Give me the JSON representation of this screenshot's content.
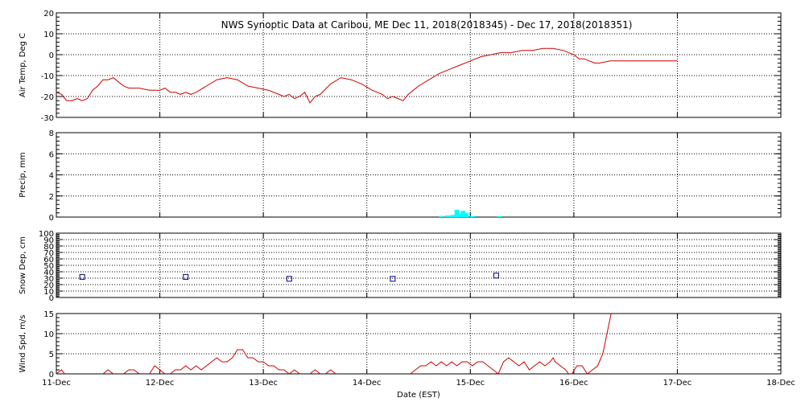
{
  "title": "NWS Synoptic Data at Caribou, ME    Dec 11, 2018(2018345) - Dec 17, 2018(2018351)",
  "xlabel": "Date (EST)",
  "x_ticks": [
    "11-Dec",
    "12-Dec",
    "13-Dec",
    "14-Dec",
    "15-Dec",
    "16-Dec",
    "17-Dec",
    "18-Dec"
  ],
  "colors": {
    "line": "#cc0000",
    "precip": "#00ffff",
    "snow": "#000080",
    "grid": "#000000"
  },
  "chart_data": [
    {
      "type": "line",
      "name": "air-temp",
      "ylabel": "Air Temp, Deg C",
      "ylim": [
        -30,
        20
      ],
      "yticks": [
        -30,
        -20,
        -10,
        0,
        10,
        20
      ],
      "grid": true,
      "x_unit": "days since 11-Dec",
      "points": [
        [
          0,
          -18
        ],
        [
          0.05,
          -19
        ],
        [
          0.1,
          -22
        ],
        [
          0.15,
          -22
        ],
        [
          0.2,
          -21
        ],
        [
          0.25,
          -22
        ],
        [
          0.3,
          -21
        ],
        [
          0.35,
          -17
        ],
        [
          0.4,
          -15
        ],
        [
          0.45,
          -12
        ],
        [
          0.5,
          -12
        ],
        [
          0.55,
          -11
        ],
        [
          0.6,
          -13
        ],
        [
          0.65,
          -15
        ],
        [
          0.7,
          -16
        ],
        [
          0.8,
          -16
        ],
        [
          0.9,
          -17
        ],
        [
          1.0,
          -17
        ],
        [
          1.05,
          -16
        ],
        [
          1.1,
          -18
        ],
        [
          1.15,
          -18
        ],
        [
          1.2,
          -19
        ],
        [
          1.25,
          -18
        ],
        [
          1.3,
          -19
        ],
        [
          1.35,
          -18
        ],
        [
          1.45,
          -15
        ],
        [
          1.55,
          -12
        ],
        [
          1.65,
          -11
        ],
        [
          1.75,
          -12
        ],
        [
          1.85,
          -15
        ],
        [
          1.95,
          -16
        ],
        [
          2.05,
          -17
        ],
        [
          2.15,
          -19
        ],
        [
          2.2,
          -20
        ],
        [
          2.25,
          -19
        ],
        [
          2.3,
          -21
        ],
        [
          2.35,
          -20
        ],
        [
          2.4,
          -18
        ],
        [
          2.45,
          -23
        ],
        [
          2.5,
          -20
        ],
        [
          2.55,
          -19
        ],
        [
          2.65,
          -14
        ],
        [
          2.75,
          -11
        ],
        [
          2.85,
          -12
        ],
        [
          2.95,
          -14
        ],
        [
          3.05,
          -17
        ],
        [
          3.15,
          -19
        ],
        [
          3.2,
          -21
        ],
        [
          3.25,
          -20
        ],
        [
          3.3,
          -21
        ],
        [
          3.35,
          -22
        ],
        [
          3.4,
          -19
        ],
        [
          3.45,
          -17
        ],
        [
          3.5,
          -15
        ],
        [
          3.6,
          -12
        ],
        [
          3.7,
          -9
        ],
        [
          3.8,
          -7
        ],
        [
          3.9,
          -5
        ],
        [
          4.0,
          -3
        ],
        [
          4.1,
          -1
        ],
        [
          4.2,
          0
        ],
        [
          4.3,
          1
        ],
        [
          4.4,
          1
        ],
        [
          4.5,
          2
        ],
        [
          4.6,
          2
        ],
        [
          4.7,
          3
        ],
        [
          4.8,
          3
        ],
        [
          4.9,
          2
        ],
        [
          5.0,
          0
        ],
        [
          5.05,
          -2
        ],
        [
          5.1,
          -2
        ],
        [
          5.2,
          -4
        ],
        [
          5.25,
          -4
        ],
        [
          5.35,
          -3
        ],
        [
          6.0,
          -3
        ]
      ]
    },
    {
      "type": "bar",
      "name": "precip",
      "ylabel": "Precip, mm",
      "ylim": [
        0,
        8
      ],
      "yticks": [
        0,
        2,
        4,
        6,
        8
      ],
      "grid": true,
      "x_unit": "days since 11-Dec",
      "bars": [
        [
          3.72,
          0.1
        ],
        [
          3.78,
          0.15
        ],
        [
          3.83,
          0.2
        ],
        [
          3.87,
          0.7
        ],
        [
          3.9,
          0.3
        ],
        [
          3.93,
          0.6
        ],
        [
          3.96,
          0.4
        ],
        [
          4.02,
          0.1
        ],
        [
          4.28,
          0.1
        ]
      ]
    },
    {
      "type": "scatter",
      "name": "snow-depth",
      "ylabel": "Snow Dep, cm",
      "ylim": [
        0,
        100
      ],
      "yticks": [
        0,
        10,
        20,
        30,
        40,
        50,
        60,
        70,
        80,
        90,
        100
      ],
      "grid": true,
      "x_unit": "days since 11-Dec",
      "points": [
        [
          0.25,
          32
        ],
        [
          1.25,
          32
        ],
        [
          2.25,
          29
        ],
        [
          3.25,
          29
        ],
        [
          4.25,
          34
        ]
      ]
    },
    {
      "type": "line",
      "name": "wind-speed",
      "ylabel": "Wind Spd, m/s",
      "ylim": [
        0,
        15
      ],
      "yticks": [
        0,
        5,
        10,
        15
      ],
      "grid": true,
      "x_unit": "days since 11-Dec",
      "segments": [
        [
          [
            0,
            0
          ],
          [
            0.05,
            1
          ],
          [
            0.08,
            0
          ]
        ],
        [
          [
            0.45,
            0
          ],
          [
            0.5,
            1
          ],
          [
            0.55,
            0
          ]
        ],
        [
          [
            0.65,
            0
          ],
          [
            0.7,
            1
          ],
          [
            0.75,
            1
          ],
          [
            0.8,
            0
          ]
        ],
        [
          [
            0.9,
            0
          ],
          [
            0.95,
            2
          ],
          [
            1.0,
            1
          ],
          [
            1.05,
            0
          ]
        ],
        [
          [
            1.1,
            0
          ],
          [
            1.15,
            1
          ],
          [
            1.2,
            1
          ],
          [
            1.25,
            2
          ],
          [
            1.3,
            1
          ],
          [
            1.35,
            2
          ],
          [
            1.4,
            1
          ],
          [
            1.45,
            2
          ],
          [
            1.5,
            3
          ],
          [
            1.55,
            4
          ],
          [
            1.6,
            3
          ],
          [
            1.65,
            3
          ],
          [
            1.7,
            4
          ],
          [
            1.75,
            6
          ],
          [
            1.8,
            6
          ],
          [
            1.85,
            4
          ],
          [
            1.9,
            4
          ],
          [
            1.95,
            3
          ],
          [
            2.0,
            3
          ],
          [
            2.05,
            2
          ],
          [
            2.1,
            2
          ],
          [
            2.15,
            1
          ],
          [
            2.2,
            1
          ],
          [
            2.25,
            0
          ]
        ],
        [
          [
            2.25,
            0
          ],
          [
            2.3,
            1
          ],
          [
            2.35,
            0
          ]
        ],
        [
          [
            2.45,
            0
          ],
          [
            2.5,
            1
          ],
          [
            2.55,
            0
          ]
        ],
        [
          [
            2.6,
            0
          ],
          [
            2.65,
            1
          ],
          [
            2.7,
            0
          ]
        ],
        [
          [
            3.42,
            0
          ],
          [
            3.47,
            1
          ],
          [
            3.52,
            2
          ],
          [
            3.57,
            2
          ],
          [
            3.62,
            3
          ],
          [
            3.67,
            2
          ],
          [
            3.72,
            3
          ],
          [
            3.77,
            2
          ],
          [
            3.82,
            3
          ],
          [
            3.87,
            2
          ],
          [
            3.92,
            3
          ],
          [
            3.97,
            3
          ],
          [
            4.02,
            2
          ],
          [
            4.07,
            3
          ],
          [
            4.12,
            3
          ],
          [
            4.17,
            2
          ],
          [
            4.22,
            1
          ],
          [
            4.27,
            0
          ],
          [
            4.32,
            3
          ],
          [
            4.37,
            4
          ],
          [
            4.42,
            3
          ],
          [
            4.47,
            2
          ],
          [
            4.52,
            3
          ],
          [
            4.57,
            1
          ],
          [
            4.62,
            2
          ],
          [
            4.67,
            3
          ],
          [
            4.72,
            2
          ],
          [
            4.77,
            3
          ],
          [
            4.8,
            4
          ],
          [
            4.82,
            3
          ],
          [
            4.87,
            2
          ],
          [
            4.92,
            1
          ],
          [
            4.95,
            0
          ]
        ],
        [
          [
            4.98,
            0
          ],
          [
            5.03,
            2
          ],
          [
            5.08,
            2
          ],
          [
            5.13,
            0
          ],
          [
            5.18,
            1
          ],
          [
            5.23,
            2
          ],
          [
            5.28,
            5
          ],
          [
            5.32,
            10
          ],
          [
            5.36,
            15
          ]
        ]
      ]
    }
  ]
}
